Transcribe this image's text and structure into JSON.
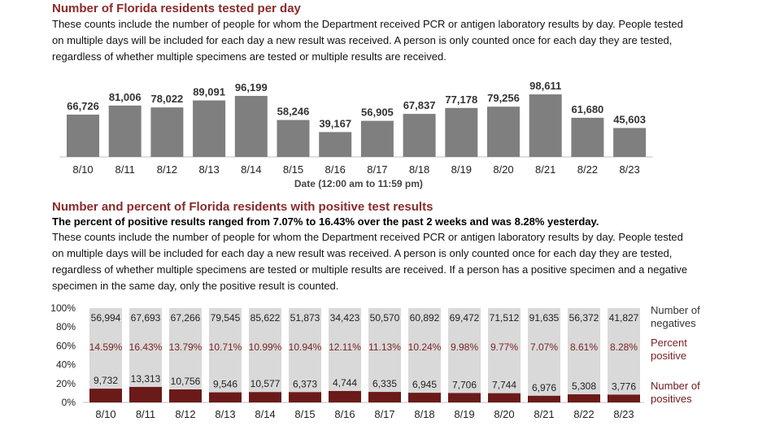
{
  "section1": {
    "title": "Number of Florida residents tested per day",
    "description": "These counts include the number of people for whom the Department received PCR or antigen laboratory results by day. People tested on multiple days will be included for each day a new result was received. A person is only counted once for each day they are tested, regardless of whether multiple specimens are tested or multiple results are received."
  },
  "section2": {
    "title": "Number and percent of Florida residents with positive test results",
    "summary": "The percent of positive results ranged from 7.07% to 16.43% over the past 2 weeks and was 8.28% yesterday.",
    "description": "These counts include the number of people for whom the Department received PCR or antigen laboratory results by day. People tested on multiple days will be included for each day a new result was received. A person is only counted once for each day they are tested, regardless of whether multiple specimens are tested or multiple results are received. If a person has a positive specimen and a negative specimen in the same day, only the positive result is counted."
  },
  "colors": {
    "title": "#8b2a2a",
    "bar_gray": "#7f7f7f",
    "negatives": "#d9d9d9",
    "positives": "#6b1a1a",
    "percent_text": "#7a1f1f"
  },
  "chart_data": [
    {
      "type": "bar",
      "categories": [
        "8/10",
        "8/11",
        "8/12",
        "8/13",
        "8/14",
        "8/15",
        "8/16",
        "8/17",
        "8/18",
        "8/19",
        "8/20",
        "8/21",
        "8/22",
        "8/23"
      ],
      "values": [
        66726,
        81006,
        78022,
        89091,
        96199,
        58246,
        39167,
        56905,
        67837,
        77178,
        79256,
        98611,
        61680,
        45603
      ],
      "value_labels": [
        "66,726",
        "81,006",
        "78,022",
        "89,091",
        "96,199",
        "58,246",
        "39,167",
        "56,905",
        "67,837",
        "77,178",
        "79,256",
        "98,611",
        "61,680",
        "45,603"
      ],
      "xlabel": "Date (12:00 am to 11:59 pm)",
      "ylabel": "",
      "ylim": [
        0,
        100000
      ],
      "grid": false
    },
    {
      "type": "bar",
      "stacked": "percent",
      "categories": [
        "8/10",
        "8/11",
        "8/12",
        "8/13",
        "8/14",
        "8/15",
        "8/16",
        "8/17",
        "8/18",
        "8/19",
        "8/20",
        "8/21",
        "8/22",
        "8/23"
      ],
      "y_ticks": [
        "100%",
        "80%",
        "60%",
        "40%",
        "20%",
        "0%"
      ],
      "ylim": [
        0,
        100
      ],
      "series": [
        {
          "name": "Number of negatives",
          "values": [
            56994,
            67693,
            67266,
            79545,
            85622,
            51873,
            34423,
            50570,
            60892,
            69472,
            71512,
            91635,
            56372,
            41827
          ],
          "labels": [
            "56,994",
            "67,693",
            "67,266",
            "79,545",
            "85,622",
            "51,873",
            "34,423",
            "50,570",
            "60,892",
            "69,472",
            "71,512",
            "91,635",
            "56,372",
            "41,827"
          ]
        },
        {
          "name": "Number of positives",
          "values": [
            9732,
            13313,
            10756,
            9546,
            10577,
            6373,
            4744,
            6335,
            6945,
            7706,
            7744,
            6976,
            5308,
            3776
          ],
          "labels": [
            "9,732",
            "13,313",
            "10,756",
            "9,546",
            "10,577",
            "6,373",
            "4,744",
            "6,335",
            "6,945",
            "7,706",
            "7,744",
            "6,976",
            "5,308",
            "3,776"
          ]
        }
      ],
      "percent_positive": {
        "name": "Percent positive",
        "values": [
          14.59,
          16.43,
          13.79,
          10.71,
          10.99,
          10.94,
          12.11,
          11.13,
          10.24,
          9.98,
          9.77,
          7.07,
          8.61,
          8.28
        ],
        "labels": [
          "14.59%",
          "16.43%",
          "13.79%",
          "10.71%",
          "10.99%",
          "10.94%",
          "12.11%",
          "11.13%",
          "10.24%",
          "9.98%",
          "9.77%",
          "7.07%",
          "8.61%",
          "8.28%"
        ]
      },
      "legend": {
        "placement": "right",
        "negatives": [
          "Number of",
          "negatives"
        ],
        "percent": [
          "Percent",
          "positive"
        ],
        "positives": [
          "Number of",
          "positives"
        ]
      }
    }
  ]
}
